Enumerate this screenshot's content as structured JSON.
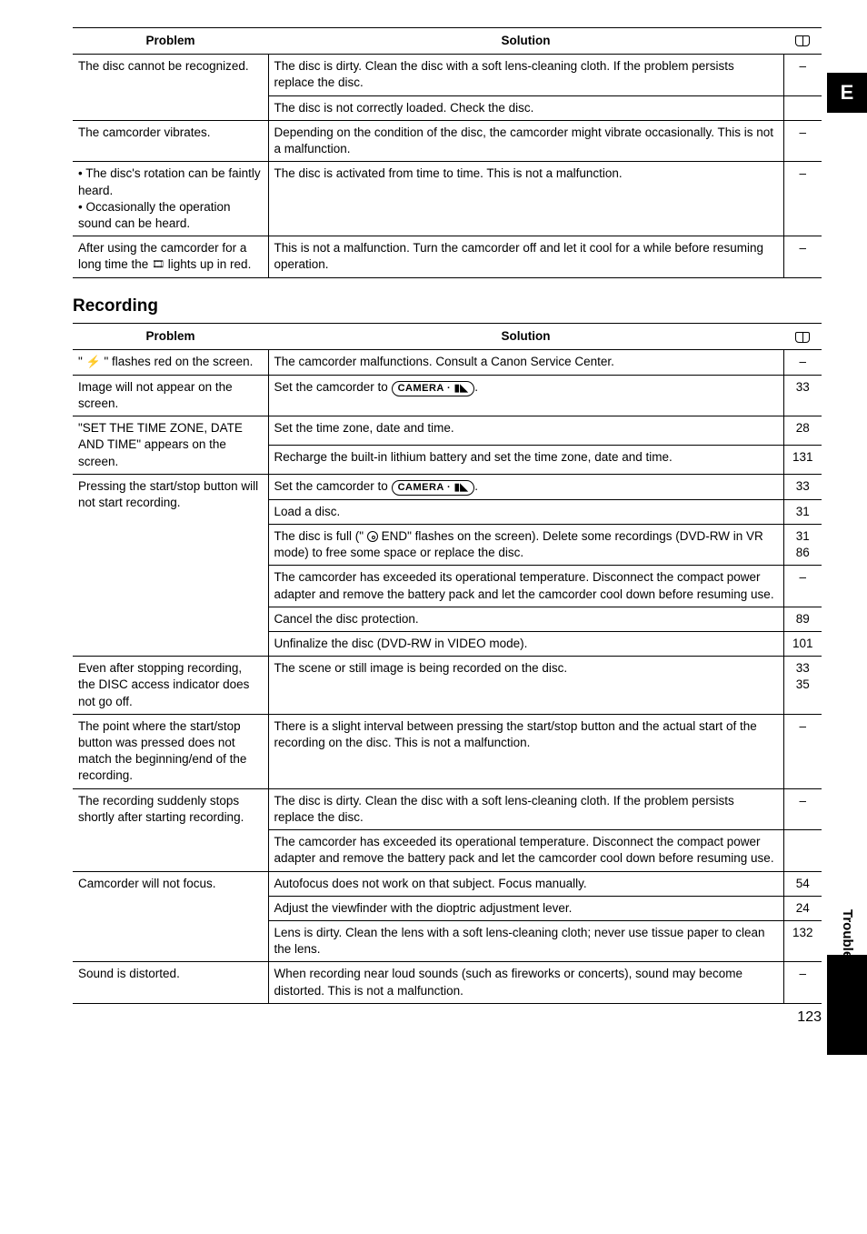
{
  "side_tab": "E",
  "side_label": "Trouble?",
  "page_number": "123",
  "table1": {
    "headers": {
      "problem": "Problem",
      "solution": "Solution"
    },
    "rows": [
      {
        "problem": "The disc cannot be recognized.",
        "solutions": [
          {
            "text_a": "The disc is dirty. Clean the disc with a soft lens-cleaning cloth. If the problem persists replace the disc.",
            "page": "–"
          },
          {
            "text_a": "The disc is not correctly loaded. Check the disc.",
            "page": ""
          }
        ]
      },
      {
        "problem": "The camcorder vibrates.",
        "solutions": [
          {
            "text_a": "Depending on the condition of the disc, the camcorder might vibrate occasionally. This is not a malfunction.",
            "page": "–"
          }
        ]
      },
      {
        "problem": "• The disc's rotation can be faintly heard.\n• Occasionally the operation sound can be heard.",
        "solutions": [
          {
            "text_a": "The disc is activated from time to time. This is not a malfunction.",
            "page": "–"
          }
        ]
      },
      {
        "problem_a": "After using the camcorder for a long time the ",
        "problem_b": " lights up in red.",
        "problem_filmcam": true,
        "solutions": [
          {
            "text_a": "This is not a malfunction. Turn the camcorder off and let it cool for a while before resuming operation.",
            "page": "–"
          }
        ]
      }
    ]
  },
  "section_recording": "Recording",
  "table2": {
    "headers": {
      "problem": "Problem",
      "solution": "Solution"
    },
    "rows": [
      {
        "problem_a": "\" ",
        "problem_b": " \" flashes red on the screen.",
        "problem_lightning": true,
        "solutions": [
          {
            "text_a": "The camcorder malfunctions. Consult a Canon Service Center.",
            "page": "–"
          }
        ]
      },
      {
        "problem": "Image will not appear on the screen.",
        "solutions": [
          {
            "text_a": "Set the camcorder to ",
            "camera_badge": "CAMERA · ▮◣",
            "text_b": ".",
            "page": "33"
          }
        ]
      },
      {
        "problem": "\"SET THE TIME ZONE, DATE AND TIME\" appears on the screen.",
        "solutions": [
          {
            "text_a": "Set the time zone, date and time.",
            "page": "28"
          },
          {
            "text_a": "Recharge the built-in lithium battery and set the time zone, date and time.",
            "page": "131"
          }
        ]
      },
      {
        "problem": "Pressing the start/stop button will not start recording.",
        "solutions": [
          {
            "text_a": "Set the camcorder to ",
            "camera_badge": "CAMERA · ▮◣",
            "text_b": ".",
            "page": "33"
          },
          {
            "text_a": "Load a disc.",
            "page": "31"
          },
          {
            "text_a": "The disc is full (\" ",
            "disc_icon": true,
            "text_b": " END\" flashes on the screen). Delete some recordings (DVD-RW in VR mode) to free some space or replace the disc.",
            "page": "31\n86"
          },
          {
            "text_a": "The camcorder has exceeded its operational temperature. Disconnect the compact power adapter and remove the battery pack and let the camcorder cool down before resuming use.",
            "page": "–"
          },
          {
            "text_a": "Cancel the disc protection.",
            "page": "89"
          },
          {
            "text_a": "Unfinalize the disc (DVD-RW in VIDEO mode).",
            "page": "101"
          }
        ]
      },
      {
        "problem": "Even after stopping recording, the DISC access indicator does not go off.",
        "solutions": [
          {
            "text_a": "The scene or still image is being recorded on the disc.",
            "page": "33\n35"
          }
        ]
      },
      {
        "problem": "The point where the start/stop button was pressed does not match the beginning/end of the recording.",
        "solutions": [
          {
            "text_a": "There is a slight interval between pressing the start/stop button and the actual start of the recording on the disc. This is not a malfunction.",
            "page": "–"
          }
        ]
      },
      {
        "problem": "The recording suddenly stops shortly after starting recording.",
        "solutions": [
          {
            "text_a": "The disc is dirty. Clean the disc with a soft lens-cleaning cloth. If the problem persists replace the disc.",
            "page": "–"
          },
          {
            "text_a": "The camcorder has exceeded its operational temperature. Disconnect the compact power adapter and remove the battery pack and let the camcorder cool down before resuming use.",
            "page": ""
          }
        ]
      },
      {
        "problem": "Camcorder will not focus.",
        "solutions": [
          {
            "text_a": "Autofocus does not work on that subject. Focus manually.",
            "page": "54"
          },
          {
            "text_a": "Adjust the viewfinder with the dioptric adjustment lever.",
            "page": "24"
          },
          {
            "text_a": "Lens is dirty. Clean the lens with a soft lens-cleaning cloth; never use tissue paper to clean the lens.",
            "page": "132"
          }
        ]
      },
      {
        "problem": "Sound is distorted.",
        "solutions": [
          {
            "text_a": "When recording near loud sounds (such as fireworks or concerts), sound may become distorted. This is not a malfunction.",
            "page": "–"
          }
        ]
      }
    ]
  }
}
